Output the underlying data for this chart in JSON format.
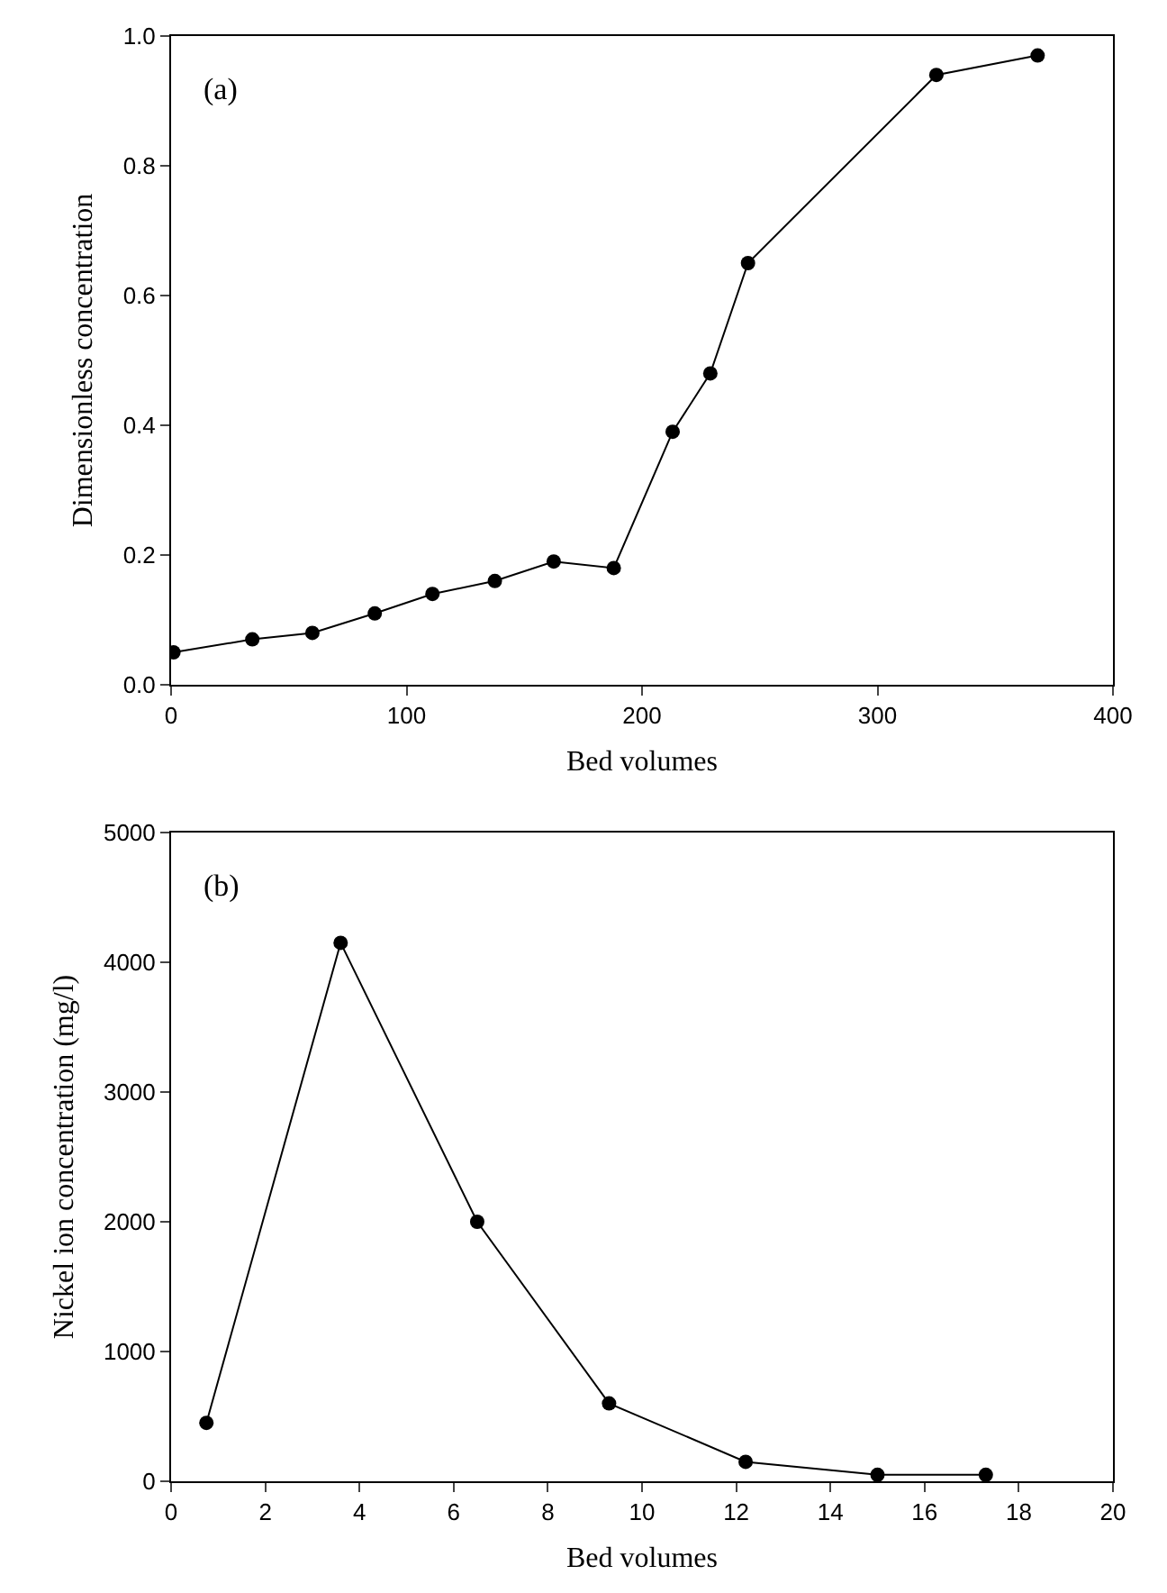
{
  "chart_data": [
    {
      "type": "line",
      "xlabel": "Bed volumes",
      "ylabel": "Dimensionless concentration",
      "annotations": [
        "(a)"
      ],
      "marker": "circle",
      "line_style": "solid",
      "x": [
        1,
        34.5,
        60,
        86.5,
        111,
        137.5,
        162.5,
        188,
        213,
        229,
        245,
        325,
        368
      ],
      "series": [
        {
          "color": "#000000",
          "values": [
            0.05,
            0.07,
            0.08,
            0.11,
            0.14,
            0.16,
            0.19,
            0.18,
            0.39,
            0.48,
            0.65,
            0.94,
            0.97
          ]
        }
      ],
      "xlim": [
        0,
        400
      ],
      "xticks": [
        0,
        100,
        200,
        300,
        400
      ],
      "ylim": [
        0,
        1
      ],
      "yticks": [
        {
          "value": 0,
          "label": "0.0"
        },
        {
          "value": 0.2,
          "label": "0.2"
        },
        {
          "value": 0.4,
          "label": "0.4"
        },
        {
          "value": 0.6,
          "label": "0.6"
        },
        {
          "value": 0.8,
          "label": "0.8"
        },
        {
          "value": 1,
          "label": "1.0"
        }
      ]
    },
    {
      "type": "line",
      "xlabel": "Bed volumes",
      "ylabel": "Nickel ion concentration (mg/l)",
      "annotations": [
        "(b)"
      ],
      "marker": "circle",
      "line_style": "solid",
      "x": [
        0.75,
        3.6,
        6.5,
        9.3,
        12.2,
        15,
        17.3
      ],
      "series": [
        {
          "color": "#000000",
          "values": [
            450,
            4150,
            2000,
            600,
            150,
            50,
            50
          ]
        }
      ],
      "xlim": [
        0,
        20
      ],
      "xticks": [
        0,
        2,
        4,
        6,
        8,
        10,
        12,
        14,
        16,
        18,
        20
      ],
      "ylim": [
        0,
        5000
      ],
      "yticks": [
        0,
        1000,
        2000,
        3000,
        4000,
        5000
      ]
    }
  ]
}
